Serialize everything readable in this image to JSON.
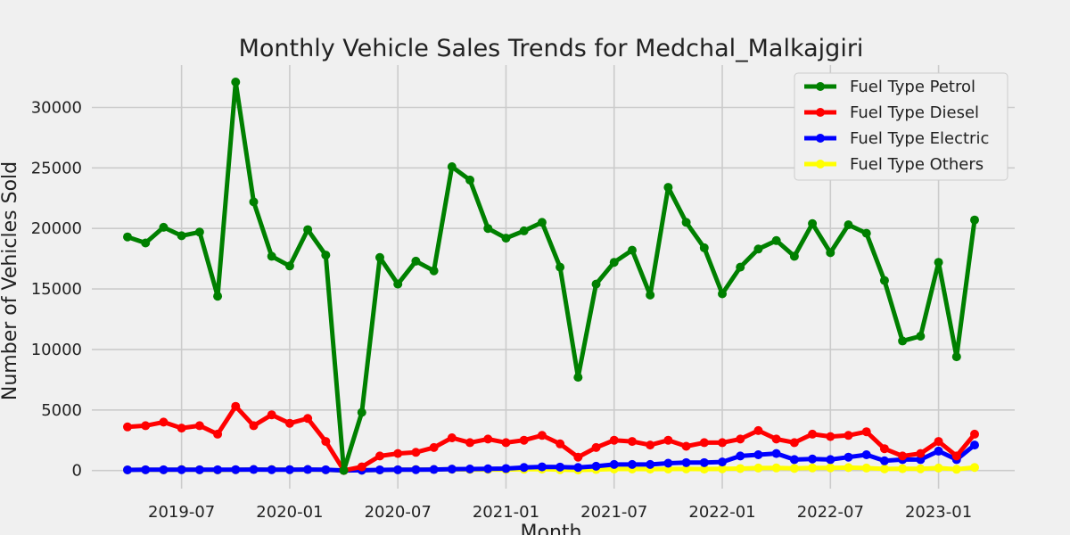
{
  "chart_data": {
    "type": "line",
    "title": "Monthly Vehicle Sales Trends for Medchal_Malkajgiri",
    "xlabel": "Month",
    "ylabel": "Number of Vehicles Sold",
    "ylim": [
      -1500,
      33500
    ],
    "yticks": [
      0,
      5000,
      10000,
      15000,
      20000,
      25000,
      30000
    ],
    "xticks": [
      "2019-07",
      "2020-01",
      "2020-07",
      "2021-01",
      "2021-07",
      "2022-01",
      "2022-07",
      "2023-01"
    ],
    "grid": true,
    "legend_position": "top-right",
    "x": [
      "2019-04",
      "2019-05",
      "2019-06",
      "2019-07",
      "2019-08",
      "2019-09",
      "2019-10",
      "2019-11",
      "2019-12",
      "2020-01",
      "2020-02",
      "2020-03",
      "2020-04",
      "2020-05",
      "2020-06",
      "2020-07",
      "2020-08",
      "2020-09",
      "2020-10",
      "2020-11",
      "2020-12",
      "2021-01",
      "2021-02",
      "2021-03",
      "2021-04",
      "2021-05",
      "2021-06",
      "2021-07",
      "2021-08",
      "2021-09",
      "2021-10",
      "2021-11",
      "2021-12",
      "2022-01",
      "2022-02",
      "2022-03",
      "2022-04",
      "2022-05",
      "2022-06",
      "2022-07",
      "2022-08",
      "2022-09",
      "2022-10",
      "2022-11",
      "2022-12",
      "2023-01",
      "2023-02",
      "2023-03"
    ],
    "series": [
      {
        "name": "Fuel Type Petrol",
        "color": "#008000",
        "values": [
          19300,
          18800,
          20100,
          19400,
          19700,
          14400,
          32100,
          22200,
          17700,
          16900,
          19900,
          17800,
          0,
          4800,
          17600,
          15400,
          17300,
          16500,
          25100,
          24000,
          20000,
          19200,
          19800,
          20500,
          16800,
          7700,
          15400,
          17200,
          18200,
          14500,
          23400,
          20500,
          18400,
          14600,
          16800,
          18300,
          19000,
          17700,
          20400,
          18000,
          20300,
          19600,
          15700,
          10700,
          11100,
          17200,
          9400,
          20700
        ]
      },
      {
        "name": "Fuel Type Diesel",
        "color": "#ff0000",
        "values": [
          3600,
          3700,
          4000,
          3500,
          3700,
          3000,
          5300,
          3700,
          4600,
          3900,
          4300,
          2400,
          0,
          300,
          1200,
          1400,
          1500,
          1900,
          2700,
          2300,
          2600,
          2300,
          2500,
          2900,
          2200,
          1100,
          1900,
          2500,
          2400,
          2100,
          2500,
          2000,
          2300,
          2300,
          2600,
          3300,
          2600,
          2300,
          3000,
          2800,
          2900,
          3200,
          1800,
          1200,
          1400,
          2400,
          1200,
          3000
        ]
      },
      {
        "name": "Fuel Type Electric",
        "color": "#0000ff",
        "values": [
          50,
          60,
          60,
          70,
          60,
          60,
          70,
          80,
          70,
          70,
          80,
          60,
          0,
          20,
          50,
          60,
          70,
          80,
          110,
          120,
          140,
          160,
          250,
          300,
          280,
          250,
          350,
          500,
          500,
          500,
          600,
          650,
          650,
          700,
          1200,
          1300,
          1400,
          900,
          950,
          900,
          1100,
          1300,
          800,
          900,
          900,
          1600,
          900,
          2100
        ]
      },
      {
        "name": "Fuel Type Others",
        "color": "#ffff00",
        "values": [
          50,
          60,
          50,
          80,
          60,
          40,
          60,
          80,
          80,
          70,
          80,
          50,
          0,
          20,
          40,
          60,
          80,
          80,
          100,
          80,
          80,
          80,
          100,
          110,
          70,
          40,
          80,
          120,
          120,
          110,
          120,
          130,
          110,
          140,
          160,
          200,
          210,
          170,
          210,
          220,
          240,
          200,
          130,
          150,
          140,
          200,
          100,
          250
        ]
      }
    ]
  }
}
